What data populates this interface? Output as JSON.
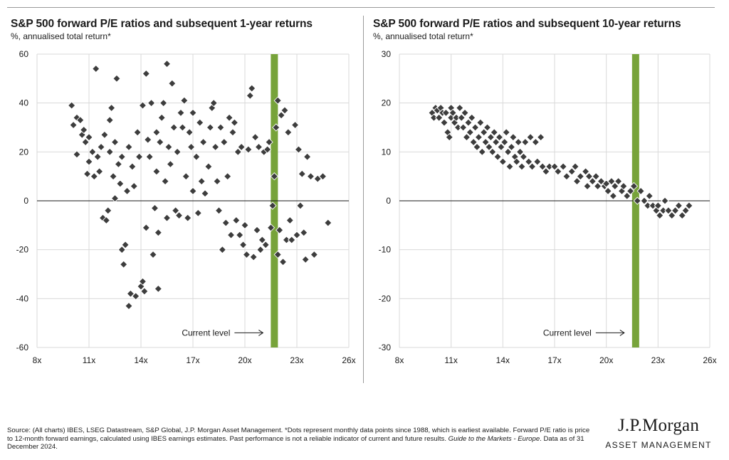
{
  "chart_data": [
    {
      "type": "scatter",
      "title": "S&P 500 forward P/E ratios and subsequent 1-year returns",
      "subtitle": "%, annualised total return*",
      "xlim": [
        8,
        26
      ],
      "ylim": [
        -60,
        60
      ],
      "x_ticks": [
        8,
        11,
        14,
        17,
        20,
        23,
        26
      ],
      "x_tick_labels": [
        "8x",
        "11x",
        "14x",
        "17x",
        "20x",
        "23x",
        "26x"
      ],
      "y_ticks": [
        60,
        40,
        20,
        0,
        -20,
        -40,
        -60
      ],
      "y_tick_labels": [
        "60",
        "40",
        "20",
        "0",
        "-20",
        "-40",
        "-60"
      ],
      "current_level_pe": 21.7,
      "annotation": "Current level",
      "marker_color": "#3d3d3d",
      "band_color": "#77a33a",
      "points": [
        [
          10.0,
          39
        ],
        [
          10.1,
          31
        ],
        [
          10.3,
          34
        ],
        [
          10.3,
          19
        ],
        [
          10.5,
          33
        ],
        [
          10.6,
          27
        ],
        [
          10.7,
          29
        ],
        [
          10.8,
          24
        ],
        [
          10.9,
          11
        ],
        [
          11.0,
          26
        ],
        [
          11.0,
          16
        ],
        [
          11.2,
          20
        ],
        [
          11.4,
          54
        ],
        [
          11.3,
          10
        ],
        [
          11.5,
          18
        ],
        [
          11.6,
          12
        ],
        [
          11.7,
          22
        ],
        [
          11.8,
          -7
        ],
        [
          11.9,
          27
        ],
        [
          12.0,
          -8
        ],
        [
          12.1,
          -4
        ],
        [
          12.2,
          20
        ],
        [
          12.2,
          33
        ],
        [
          12.3,
          38
        ],
        [
          12.4,
          10
        ],
        [
          12.5,
          1
        ],
        [
          12.5,
          24
        ],
        [
          12.6,
          50
        ],
        [
          12.7,
          15
        ],
        [
          12.8,
          7
        ],
        [
          12.9,
          18
        ],
        [
          12.9,
          -20
        ],
        [
          13.0,
          -26
        ],
        [
          13.1,
          -18
        ],
        [
          13.2,
          4
        ],
        [
          13.3,
          -43
        ],
        [
          13.3,
          22
        ],
        [
          13.4,
          -38
        ],
        [
          13.5,
          14
        ],
        [
          13.6,
          6
        ],
        [
          13.7,
          -39
        ],
        [
          13.8,
          28
        ],
        [
          13.9,
          18
        ],
        [
          14.0,
          -35
        ],
        [
          14.1,
          -33
        ],
        [
          14.1,
          39
        ],
        [
          14.2,
          -37
        ],
        [
          14.3,
          52
        ],
        [
          14.3,
          -11
        ],
        [
          14.4,
          25
        ],
        [
          14.5,
          18
        ],
        [
          14.6,
          40
        ],
        [
          14.7,
          -22
        ],
        [
          14.8,
          -3
        ],
        [
          14.9,
          28
        ],
        [
          14.9,
          12
        ],
        [
          15.0,
          -36
        ],
        [
          15.0,
          -13
        ],
        [
          15.1,
          24
        ],
        [
          15.2,
          34
        ],
        [
          15.3,
          40
        ],
        [
          15.4,
          8
        ],
        [
          15.5,
          56
        ],
        [
          15.5,
          -7
        ],
        [
          15.6,
          22
        ],
        [
          15.7,
          15
        ],
        [
          15.8,
          48
        ],
        [
          15.9,
          30
        ],
        [
          16.0,
          -4
        ],
        [
          16.1,
          20
        ],
        [
          16.2,
          -6
        ],
        [
          16.3,
          36
        ],
        [
          16.4,
          30
        ],
        [
          16.5,
          41
        ],
        [
          16.6,
          10
        ],
        [
          16.7,
          -7
        ],
        [
          16.8,
          28
        ],
        [
          16.9,
          22
        ],
        [
          17.0,
          36
        ],
        [
          17.0,
          4
        ],
        [
          17.2,
          18
        ],
        [
          17.3,
          -5
        ],
        [
          17.4,
          32
        ],
        [
          17.5,
          8
        ],
        [
          17.6,
          24
        ],
        [
          17.7,
          3
        ],
        [
          17.9,
          14
        ],
        [
          18.0,
          30
        ],
        [
          18.1,
          38
        ],
        [
          18.2,
          40
        ],
        [
          18.3,
          22
        ],
        [
          18.4,
          8
        ],
        [
          18.5,
          -4
        ],
        [
          18.6,
          30
        ],
        [
          18.7,
          -20
        ],
        [
          18.8,
          24
        ],
        [
          18.9,
          -9
        ],
        [
          19.0,
          10
        ],
        [
          19.1,
          34
        ],
        [
          19.2,
          -14
        ],
        [
          19.3,
          28
        ],
        [
          19.4,
          32
        ],
        [
          19.5,
          -8
        ],
        [
          19.6,
          20
        ],
        [
          19.7,
          -14
        ],
        [
          19.8,
          22
        ],
        [
          19.9,
          -18
        ],
        [
          20.0,
          -10
        ],
        [
          20.1,
          -22
        ],
        [
          20.2,
          21
        ],
        [
          20.3,
          43
        ],
        [
          20.4,
          46
        ],
        [
          20.5,
          -23
        ],
        [
          20.6,
          26
        ],
        [
          20.7,
          -12
        ],
        [
          20.8,
          22
        ],
        [
          20.9,
          -20
        ],
        [
          21.0,
          -16
        ],
        [
          21.1,
          20
        ],
        [
          21.2,
          -18
        ],
        [
          21.3,
          21
        ],
        [
          21.4,
          24
        ],
        [
          21.5,
          -11
        ],
        [
          21.6,
          -2
        ],
        [
          21.7,
          10
        ],
        [
          21.8,
          30
        ],
        [
          21.9,
          41
        ],
        [
          21.9,
          -22
        ],
        [
          22.0,
          -12
        ],
        [
          22.1,
          35
        ],
        [
          22.2,
          -25
        ],
        [
          22.3,
          37
        ],
        [
          22.4,
          -16
        ],
        [
          22.5,
          28
        ],
        [
          22.6,
          -8
        ],
        [
          22.7,
          -16
        ],
        [
          22.9,
          31
        ],
        [
          23.0,
          -14
        ],
        [
          23.1,
          21
        ],
        [
          23.2,
          -2
        ],
        [
          23.3,
          11
        ],
        [
          23.4,
          -13
        ],
        [
          23.5,
          -24
        ],
        [
          23.6,
          18
        ],
        [
          23.8,
          10
        ],
        [
          24.0,
          -22
        ],
        [
          24.2,
          9
        ],
        [
          24.5,
          10
        ],
        [
          24.8,
          -9
        ]
      ]
    },
    {
      "type": "scatter",
      "title": "S&P 500 forward P/E ratios and subsequent 10-year returns",
      "subtitle": "%, annualised total return*",
      "xlim": [
        8,
        26
      ],
      "ylim": [
        -30,
        30
      ],
      "x_ticks": [
        8,
        11,
        14,
        17,
        20,
        23,
        26
      ],
      "x_tick_labels": [
        "8x",
        "11x",
        "14x",
        "17x",
        "20x",
        "23x",
        "26x"
      ],
      "y_ticks": [
        30,
        20,
        10,
        0,
        -10,
        -20,
        -30
      ],
      "y_tick_labels": [
        "30",
        "20",
        "10",
        "0",
        "-10",
        "-20",
        "-30"
      ],
      "current_level_pe": 21.7,
      "annotation": "Current level",
      "marker_color": "#3d3d3d",
      "band_color": "#77a33a",
      "points": [
        [
          9.9,
          18
        ],
        [
          10.0,
          17
        ],
        [
          10.1,
          19
        ],
        [
          10.2,
          18.5
        ],
        [
          10.3,
          17
        ],
        [
          10.4,
          19
        ],
        [
          10.5,
          18
        ],
        [
          10.6,
          16
        ],
        [
          10.7,
          18
        ],
        [
          10.8,
          14
        ],
        [
          10.9,
          13
        ],
        [
          11.0,
          17
        ],
        [
          11.0,
          19
        ],
        [
          11.1,
          18
        ],
        [
          11.2,
          16
        ],
        [
          11.3,
          17
        ],
        [
          11.4,
          15
        ],
        [
          11.5,
          19
        ],
        [
          11.6,
          17
        ],
        [
          11.7,
          15
        ],
        [
          11.8,
          18
        ],
        [
          11.9,
          13
        ],
        [
          12.0,
          16
        ],
        [
          12.1,
          14
        ],
        [
          12.2,
          17
        ],
        [
          12.3,
          12
        ],
        [
          12.4,
          15
        ],
        [
          12.5,
          11
        ],
        [
          12.6,
          13
        ],
        [
          12.7,
          16
        ],
        [
          12.8,
          10
        ],
        [
          12.9,
          14
        ],
        [
          13.0,
          12
        ],
        [
          13.1,
          15
        ],
        [
          13.2,
          11
        ],
        [
          13.3,
          13
        ],
        [
          13.4,
          10
        ],
        [
          13.5,
          14
        ],
        [
          13.6,
          12
        ],
        [
          13.7,
          9
        ],
        [
          13.8,
          13
        ],
        [
          13.9,
          11
        ],
        [
          14.0,
          8
        ],
        [
          14.1,
          12
        ],
        [
          14.2,
          14
        ],
        [
          14.3,
          10
        ],
        [
          14.4,
          7
        ],
        [
          14.5,
          11
        ],
        [
          14.6,
          13
        ],
        [
          14.7,
          9
        ],
        [
          14.8,
          8
        ],
        [
          14.9,
          12
        ],
        [
          15.0,
          10
        ],
        [
          15.1,
          7
        ],
        [
          15.2,
          9
        ],
        [
          15.3,
          12
        ],
        [
          15.5,
          8
        ],
        [
          15.6,
          13
        ],
        [
          15.7,
          7
        ],
        [
          15.9,
          12
        ],
        [
          16.0,
          8
        ],
        [
          16.2,
          13
        ],
        [
          16.3,
          7
        ],
        [
          16.5,
          6
        ],
        [
          16.7,
          7
        ],
        [
          17.0,
          7
        ],
        [
          17.2,
          6
        ],
        [
          17.5,
          7
        ],
        [
          17.7,
          5
        ],
        [
          18.0,
          6
        ],
        [
          18.2,
          7
        ],
        [
          18.3,
          4
        ],
        [
          18.5,
          5
        ],
        [
          18.8,
          6
        ],
        [
          18.9,
          3
        ],
        [
          19.0,
          5
        ],
        [
          19.2,
          4
        ],
        [
          19.4,
          5
        ],
        [
          19.5,
          3
        ],
        [
          19.7,
          4
        ],
        [
          19.9,
          3
        ],
        [
          20.0,
          3.5
        ],
        [
          20.1,
          2
        ],
        [
          20.3,
          4
        ],
        [
          20.4,
          1
        ],
        [
          20.5,
          3
        ],
        [
          20.7,
          4
        ],
        [
          20.9,
          2
        ],
        [
          21.0,
          3
        ],
        [
          21.2,
          1
        ],
        [
          21.4,
          2
        ],
        [
          21.6,
          3
        ],
        [
          21.8,
          0
        ],
        [
          22.0,
          2
        ],
        [
          22.2,
          0
        ],
        [
          22.4,
          -1
        ],
        [
          22.5,
          1
        ],
        [
          22.7,
          -1
        ],
        [
          22.9,
          -2
        ],
        [
          23.0,
          -1
        ],
        [
          23.1,
          -3
        ],
        [
          23.3,
          -2
        ],
        [
          23.4,
          0
        ],
        [
          23.6,
          -2
        ],
        [
          23.8,
          -3
        ],
        [
          24.0,
          -2
        ],
        [
          24.2,
          -1
        ],
        [
          24.4,
          -3
        ],
        [
          24.6,
          -2
        ],
        [
          24.8,
          -1
        ]
      ]
    }
  ],
  "footnote": {
    "text": "Source: (All charts) IBES, LSEG Datastream, S&P Global, J.P. Morgan Asset Management. *Dots represent monthly data points since 1988, which is earliest available. Forward P/E ratio is price to 12-month forward earnings, calculated using IBES earnings estimates. Past performance is not a reliable indicator of current and future results. ",
    "guide": "Guide to the Markets - Europe",
    "date": ". Data as of 31 December 2024."
  },
  "logo": {
    "main": "J.P.Morgan",
    "sub": "ASSET MANAGEMENT"
  }
}
